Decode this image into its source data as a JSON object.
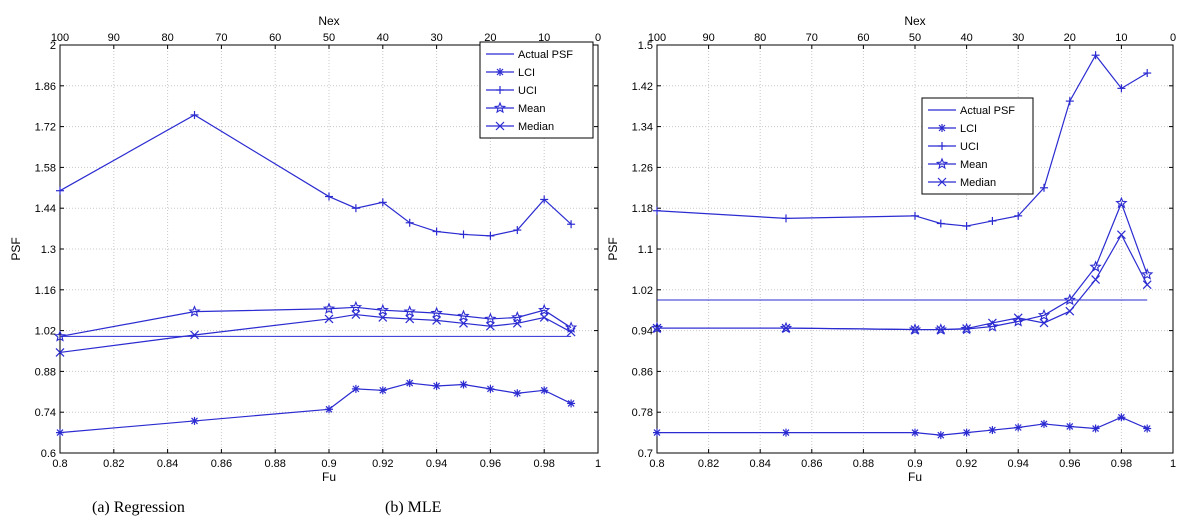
{
  "series_color": "#2b2bd1",
  "chart_data": [
    {
      "type": "line",
      "caption": "(a) Regression",
      "xlabel": "Fu",
      "ylabel": "PSF",
      "top_xlabel": "Nex",
      "xlim": [
        0.8,
        1.0
      ],
      "ylim": [
        0.6,
        2.0
      ],
      "top_xlim": [
        100,
        0
      ],
      "xticks": [
        "0.8",
        "0.82",
        "0.84",
        "0.86",
        "0.88",
        "0.9",
        "0.92",
        "0.94",
        "0.96",
        "0.98",
        "1"
      ],
      "yticks": [
        "0.6",
        "0.74",
        "0.88",
        "1.02",
        "1.16",
        "1.3",
        "1.44",
        "1.58",
        "1.72",
        "1.86",
        "2"
      ],
      "top_xticks": [
        "100",
        "90",
        "80",
        "70",
        "60",
        "50",
        "40",
        "30",
        "20",
        "10",
        "0"
      ],
      "grid": true,
      "legend_position": "top-right",
      "x": [
        0.8,
        0.85,
        0.9,
        0.91,
        0.92,
        0.93,
        0.94,
        0.95,
        0.96,
        0.97,
        0.98,
        0.99
      ],
      "series": [
        {
          "name": "Actual PSF",
          "marker": "none",
          "x": [
            0.8,
            0.99
          ],
          "values": [
            1.0,
            1.0
          ]
        },
        {
          "name": "LCI",
          "marker": "asterisk",
          "values": [
            0.67,
            0.71,
            0.75,
            0.82,
            0.815,
            0.84,
            0.83,
            0.835,
            0.82,
            0.805,
            0.815,
            0.77
          ]
        },
        {
          "name": "UCI",
          "marker": "plus",
          "values": [
            1.5,
            1.76,
            1.48,
            1.44,
            1.46,
            1.39,
            1.36,
            1.35,
            1.345,
            1.365,
            1.47,
            1.385
          ]
        },
        {
          "name": "Mean",
          "marker": "star",
          "values": [
            1.0,
            1.085,
            1.095,
            1.1,
            1.09,
            1.085,
            1.08,
            1.07,
            1.06,
            1.065,
            1.09,
            1.03
          ]
        },
        {
          "name": "Median",
          "marker": "x",
          "values": [
            0.945,
            1.005,
            1.06,
            1.075,
            1.065,
            1.06,
            1.055,
            1.045,
            1.035,
            1.045,
            1.065,
            1.015
          ]
        }
      ]
    },
    {
      "type": "line",
      "caption": "(b) MLE",
      "xlabel": "Fu",
      "ylabel": "PSF",
      "top_xlabel": "Nex",
      "xlim": [
        0.8,
        1.0
      ],
      "ylim": [
        0.7,
        1.5
      ],
      "top_xlim": [
        100,
        0
      ],
      "xticks": [
        "0.8",
        "0.82",
        "0.84",
        "0.86",
        "0.88",
        "0.9",
        "0.92",
        "0.94",
        "0.96",
        "0.98",
        "1"
      ],
      "yticks": [
        "0.7",
        "0.78",
        "0.86",
        "0.94",
        "1.02",
        "1.1",
        "1.18",
        "1.26",
        "1.34",
        "1.42",
        "1.5"
      ],
      "top_xticks": [
        "100",
        "90",
        "80",
        "70",
        "60",
        "50",
        "40",
        "30",
        "20",
        "10",
        "0"
      ],
      "grid": true,
      "legend_position": "top-center",
      "x": [
        0.8,
        0.85,
        0.9,
        0.91,
        0.92,
        0.93,
        0.94,
        0.95,
        0.96,
        0.97,
        0.98,
        0.99
      ],
      "series": [
        {
          "name": "Actual PSF",
          "marker": "none",
          "x": [
            0.8,
            0.99
          ],
          "values": [
            1.0,
            1.0
          ]
        },
        {
          "name": "LCI",
          "marker": "asterisk",
          "values": [
            0.74,
            0.74,
            0.74,
            0.735,
            0.74,
            0.745,
            0.75,
            0.757,
            0.752,
            0.748,
            0.77,
            0.748
          ]
        },
        {
          "name": "UCI",
          "marker": "plus",
          "values": [
            1.175,
            1.16,
            1.165,
            1.15,
            1.145,
            1.155,
            1.165,
            1.22,
            1.39,
            1.48,
            1.415,
            1.445
          ]
        },
        {
          "name": "Mean",
          "marker": "star",
          "values": [
            0.945,
            0.945,
            0.942,
            0.942,
            0.943,
            0.948,
            0.958,
            0.97,
            1.0,
            1.065,
            1.19,
            1.05
          ]
        },
        {
          "name": "Median",
          "marker": "x",
          "values": [
            0.945,
            0.945,
            0.942,
            0.942,
            0.944,
            0.955,
            0.965,
            0.955,
            0.978,
            1.04,
            1.128,
            1.03
          ]
        }
      ]
    }
  ]
}
